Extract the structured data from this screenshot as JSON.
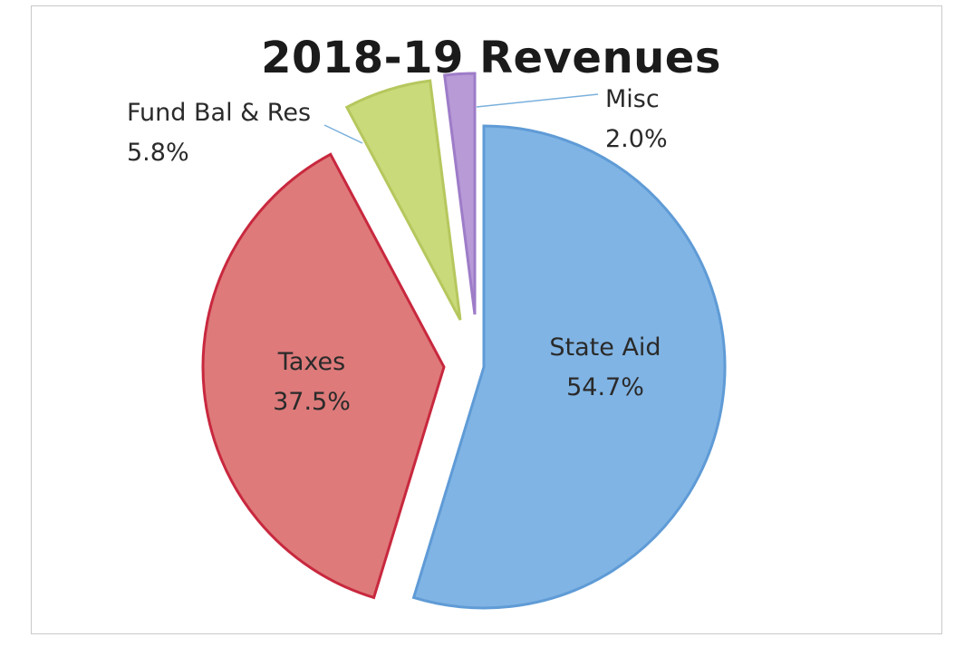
{
  "chart_data": {
    "type": "pie",
    "title": "2018-19 Revenues",
    "slices": [
      {
        "label": "State Aid",
        "pct_label": "54.7%",
        "value": 54.7,
        "color": "#80b4e4",
        "edge": "#5f9bd6"
      },
      {
        "label": "Taxes",
        "pct_label": "37.5%",
        "value": 37.5,
        "color": "#de7a7a",
        "edge": "#c8283e"
      },
      {
        "label": "Fund Bal & Res",
        "pct_label": "5.8%",
        "value": 5.8,
        "color": "#c9da7a",
        "edge": "#b6c75e"
      },
      {
        "label": "Misc",
        "pct_label": "2.0%",
        "value": 2.0,
        "color": "#b79ad6",
        "edge": "#9e7cc8"
      }
    ],
    "legend": "none",
    "label_color": "#2a2a2a",
    "leader_line_color": "#7ab0dc"
  }
}
